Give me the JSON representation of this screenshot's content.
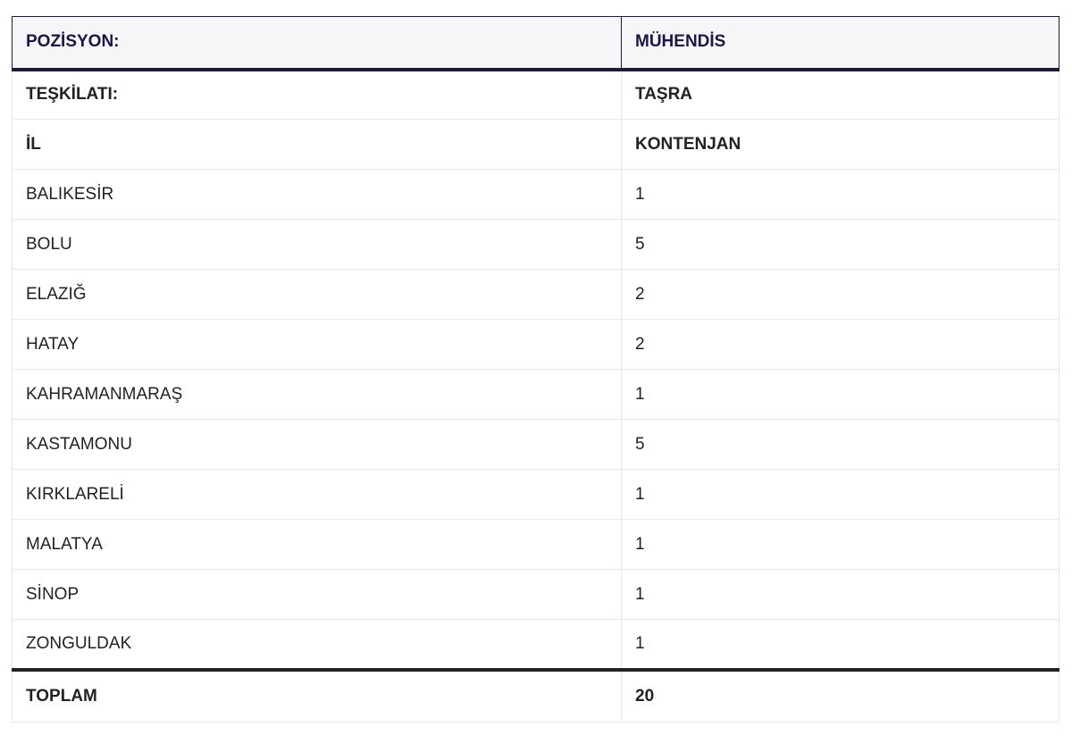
{
  "header": [
    "POZİSYON:",
    "MÜHENDİS"
  ],
  "info_rows": [
    [
      "TEŞKİLATI:",
      "TAŞRA"
    ],
    [
      "İL",
      "KONTENJAN"
    ]
  ],
  "rows": [
    [
      "BALIKESİR",
      "1"
    ],
    [
      "BOLU",
      "5"
    ],
    [
      "ELAZIĞ",
      "2"
    ],
    [
      "HATAY",
      "2"
    ],
    [
      "KAHRAMANMARAŞ",
      "1"
    ],
    [
      "KASTAMONU",
      "5"
    ],
    [
      "KIRKLARELİ",
      "1"
    ],
    [
      "MALATYA",
      "1"
    ],
    [
      "SİNOP",
      "1"
    ],
    [
      "ZONGULDAK",
      "1"
    ]
  ],
  "footer": [
    "TOPLAM",
    "20"
  ]
}
